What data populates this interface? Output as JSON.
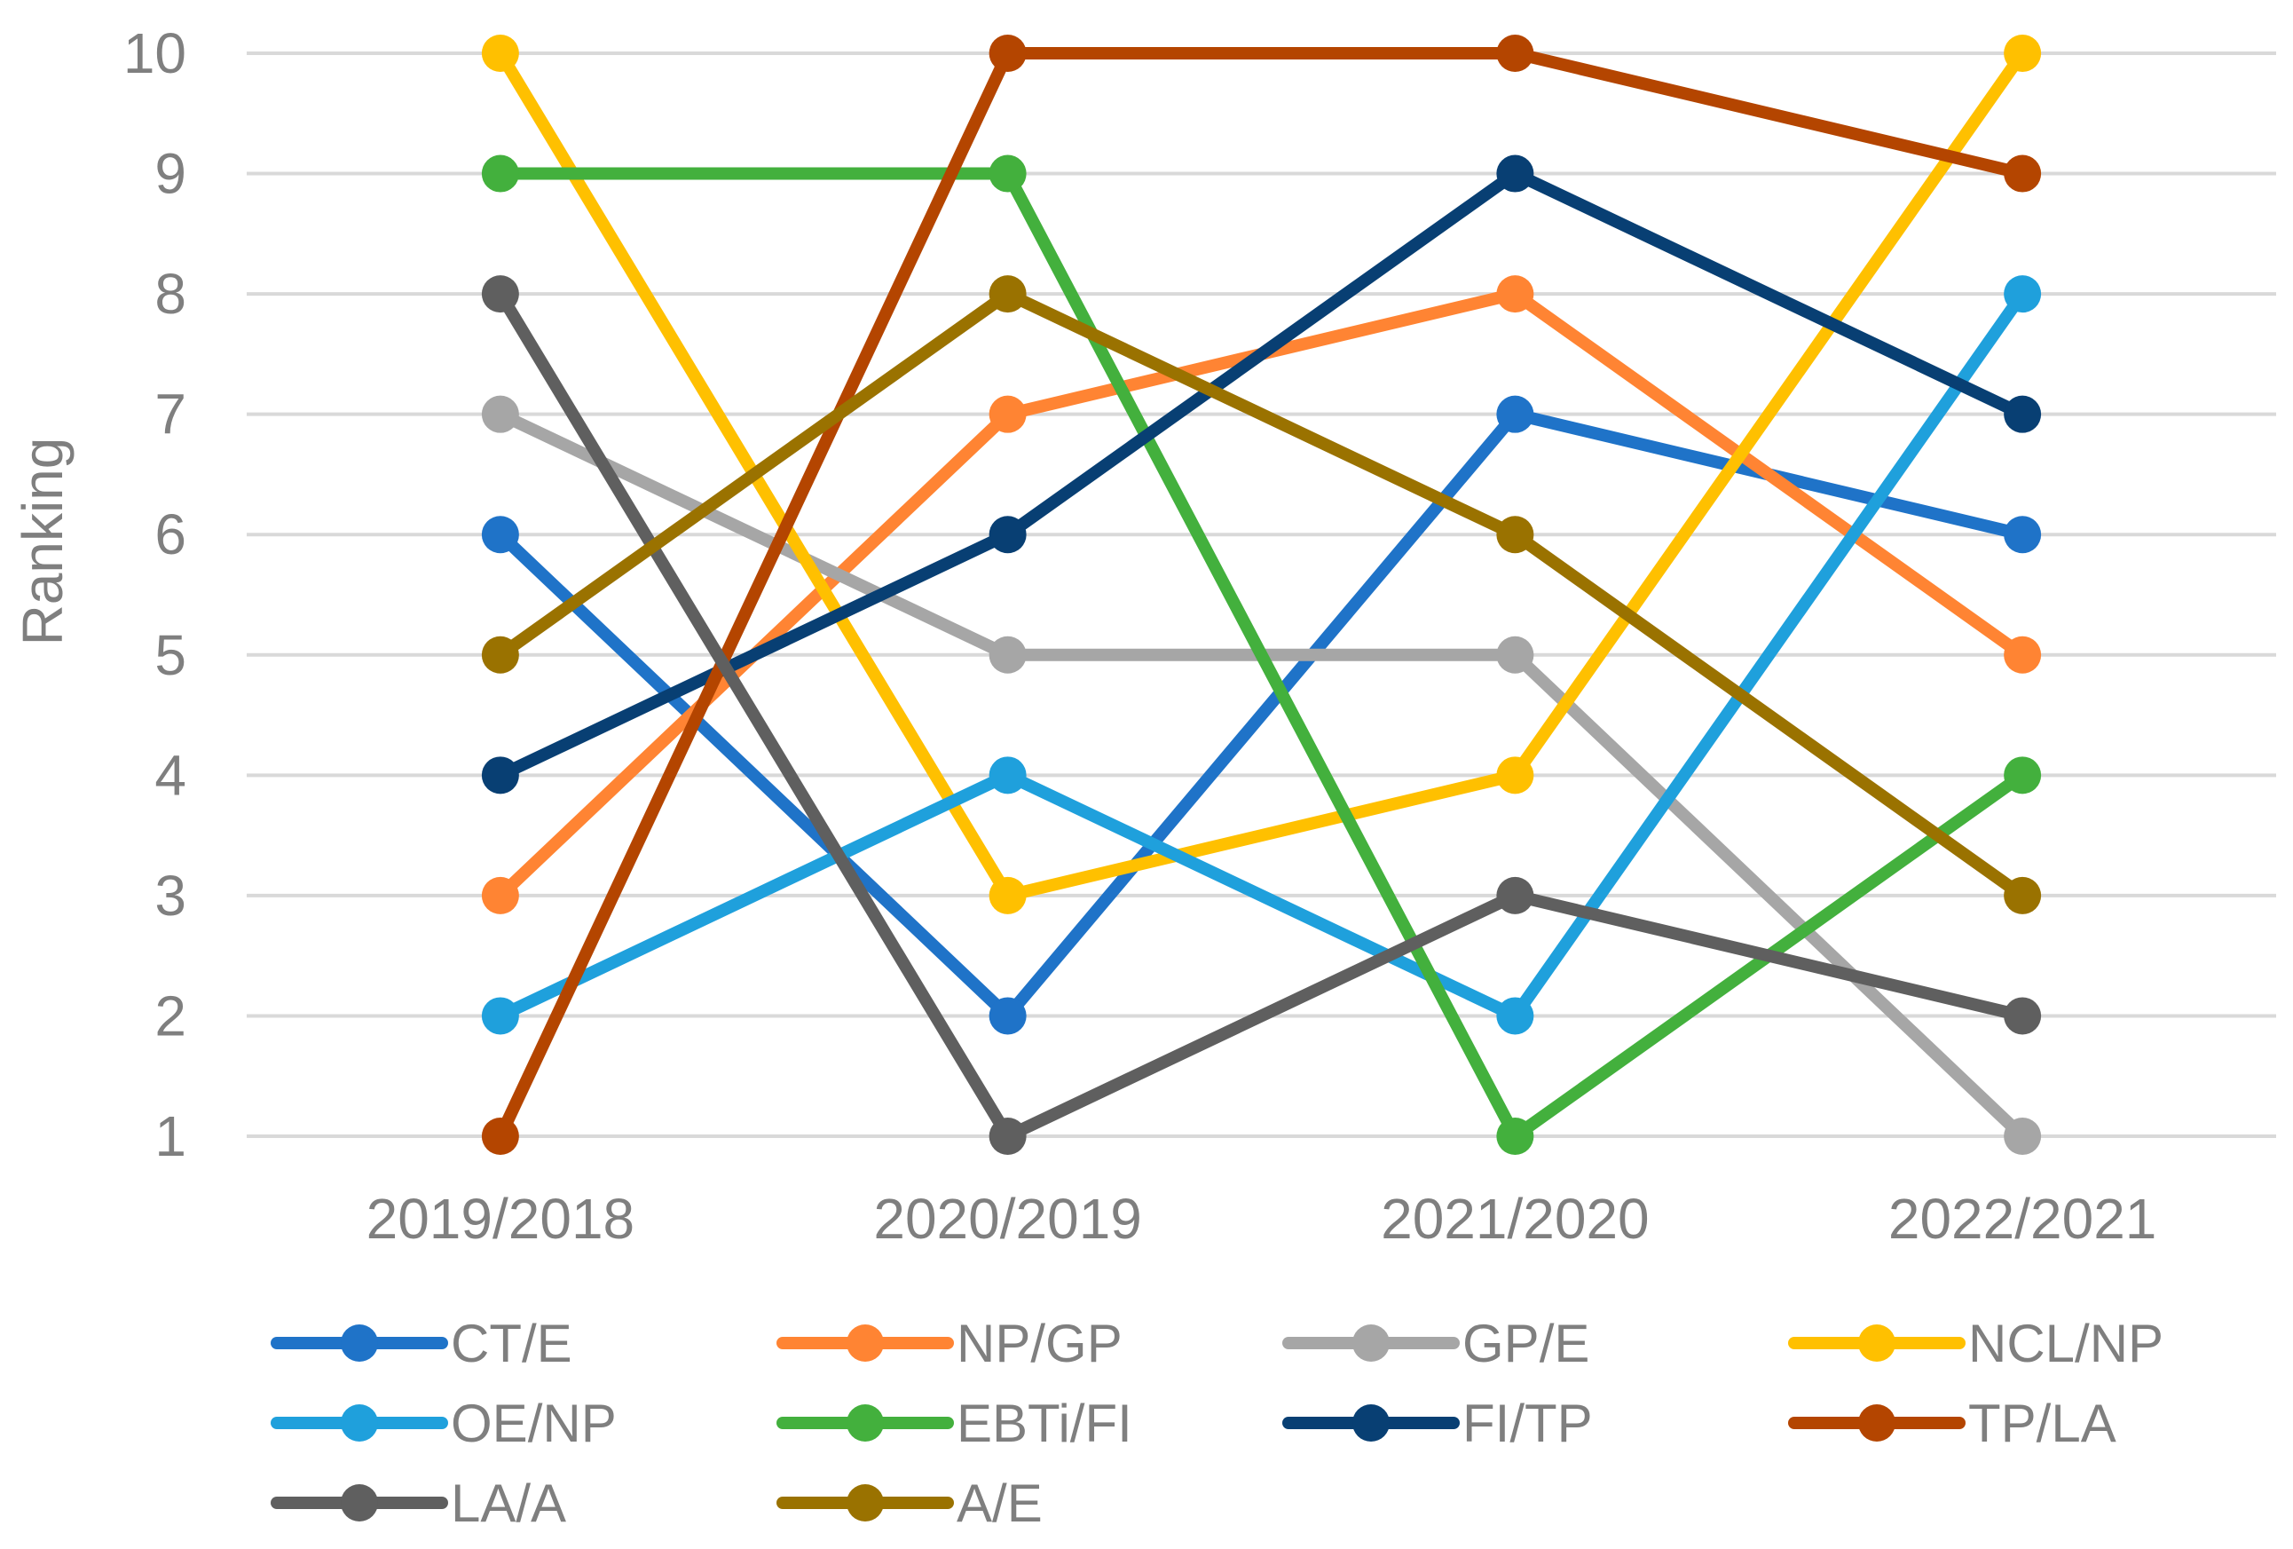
{
  "chart_data": {
    "type": "line",
    "title": "",
    "xlabel": "",
    "ylabel": "Ranking",
    "ylim": [
      1,
      10
    ],
    "yticks": [
      1,
      2,
      3,
      4,
      5,
      6,
      7,
      8,
      9,
      10
    ],
    "grid": true,
    "legend_position": "bottom",
    "categories": [
      "2019/2018",
      "2020/2019",
      "2021/2020",
      "2022/2021"
    ],
    "series": [
      {
        "name": "CT/E",
        "color": "#1f73c8",
        "values": [
          6,
          2,
          7,
          6
        ]
      },
      {
        "name": "NP/GP",
        "color": "#ff8433",
        "values": [
          3,
          7,
          8,
          5
        ]
      },
      {
        "name": "GP/E",
        "color": "#a6a6a6",
        "values": [
          7,
          5,
          5,
          1
        ]
      },
      {
        "name": "NCL/NP",
        "color": "#ffc000",
        "values": [
          10,
          3,
          4,
          10
        ]
      },
      {
        "name": "OE/NP",
        "color": "#1fa0dc",
        "values": [
          2,
          4,
          2,
          8
        ]
      },
      {
        "name": "EBTi/FI",
        "color": "#43b03d",
        "values": [
          9,
          9,
          1,
          4
        ]
      },
      {
        "name": "FI/TP",
        "color": "#083f73",
        "values": [
          4,
          6,
          9,
          7
        ]
      },
      {
        "name": "TP/LA",
        "color": "#b44500",
        "values": [
          1,
          10,
          10,
          9
        ]
      },
      {
        "name": "LA/A",
        "color": "#5f5f5f",
        "values": [
          8,
          1,
          3,
          2
        ]
      },
      {
        "name": "A/E",
        "color": "#9a7200",
        "values": [
          5,
          8,
          6,
          3
        ]
      }
    ]
  }
}
